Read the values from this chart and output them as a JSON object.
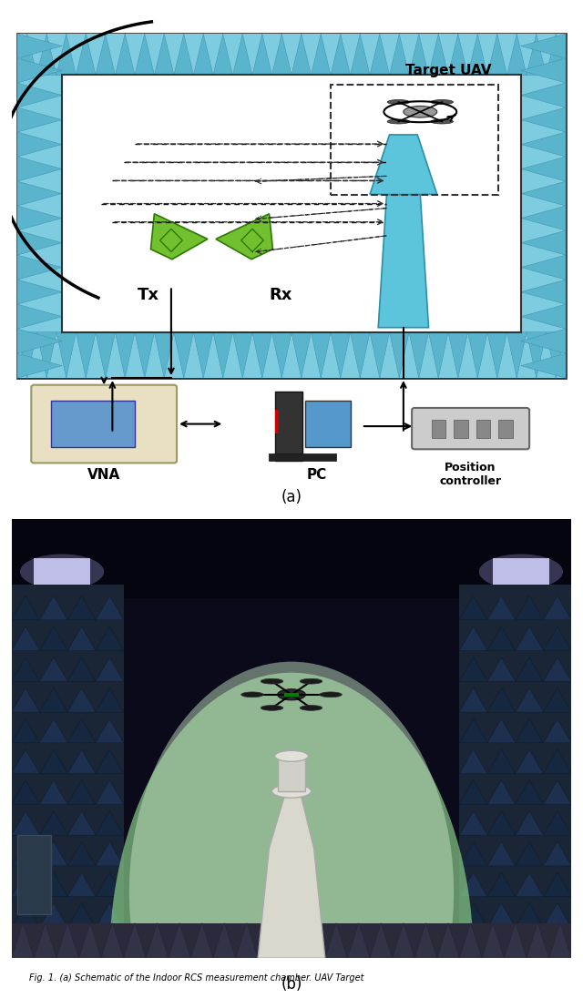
{
  "fig_width": 6.4,
  "fig_height": 10.96,
  "dpi": 100,
  "background_color": "#ffffff",
  "panel_a_label": "(a)",
  "panel_b_label": "(b)",
  "caption": "Fig. 1. (a) Schematic of the Indoor RCS measurement chamber. UAV Target",
  "anechoic_bg": "#7ec8d8",
  "anechoic_triangle_color": "#5aaec0",
  "wall_bg": "#c8e6f0",
  "antenna_color": "#6bbf2e",
  "pedestal_color": "#5ab8d8",
  "tx_label": "Tx",
  "rx_label": "Rx",
  "target_uav_label": "Target UAV",
  "vna_label": "VNA",
  "pc_label": "PC",
  "position_controller_label": "Position\ncontroller"
}
